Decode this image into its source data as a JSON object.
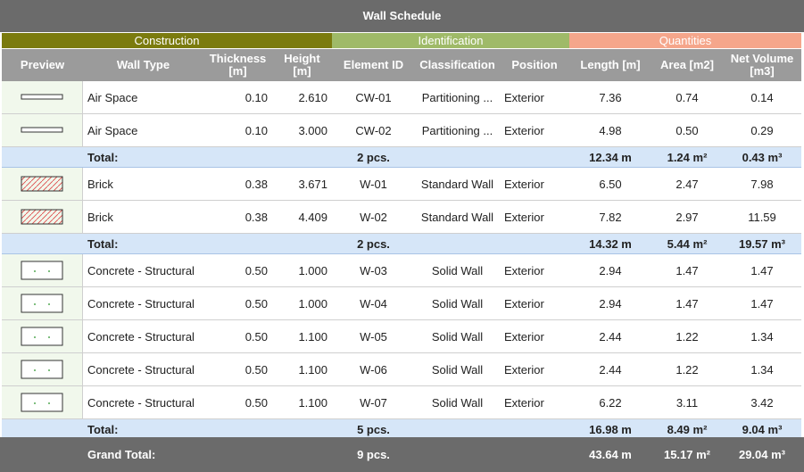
{
  "header": {
    "title": "Wall Schedule"
  },
  "column_groups": [
    "Construction",
    "Identification",
    "Quantities"
  ],
  "columns": [
    "Preview",
    "Wall Type",
    "Thickness [m]",
    "Height [m]",
    "Element ID",
    "Classification",
    "Position",
    "Length [m]",
    "Area [m2]",
    "Net Volume [m3]"
  ],
  "groups": [
    {
      "rows": [
        [
          "Air Space",
          "0.10",
          "2.610",
          "CW-01",
          "Partitioning ...",
          "Exterior",
          "7.36",
          "0.74",
          "0.14"
        ],
        [
          "Air Space",
          "0.10",
          "3.000",
          "CW-02",
          "Partitioning ...",
          "Exterior",
          "4.98",
          "0.50",
          "0.29"
        ]
      ],
      "total": {
        "label": "Total:",
        "count": "2 pcs.",
        "length": "12.34 m",
        "area": "1.24 m²",
        "net_volume": "0.43 m³"
      }
    },
    {
      "rows": [
        [
          "Brick",
          "0.38",
          "3.671",
          "W-01",
          "Standard Wall",
          "Exterior",
          "6.50",
          "2.47",
          "7.98"
        ],
        [
          "Brick",
          "0.38",
          "4.409",
          "W-02",
          "Standard Wall",
          "Exterior",
          "7.82",
          "2.97",
          "11.59"
        ]
      ],
      "total": {
        "label": "Total:",
        "count": "2 pcs.",
        "length": "14.32 m",
        "area": "5.44 m²",
        "net_volume": "19.57 m³"
      }
    },
    {
      "rows": [
        [
          "Concrete - Structural",
          "0.50",
          "1.000",
          "W-03",
          "Solid Wall",
          "Exterior",
          "2.94",
          "1.47",
          "1.47"
        ],
        [
          "Concrete - Structural",
          "0.50",
          "1.000",
          "W-04",
          "Solid Wall",
          "Exterior",
          "2.94",
          "1.47",
          "1.47"
        ],
        [
          "Concrete - Structural",
          "0.50",
          "1.100",
          "W-05",
          "Solid Wall",
          "Exterior",
          "2.44",
          "1.22",
          "1.34"
        ],
        [
          "Concrete - Structural",
          "0.50",
          "1.100",
          "W-06",
          "Solid Wall",
          "Exterior",
          "2.44",
          "1.22",
          "1.34"
        ],
        [
          "Concrete - Structural",
          "0.50",
          "1.100",
          "W-07",
          "Solid Wall",
          "Exterior",
          "6.22",
          "3.11",
          "3.42"
        ]
      ],
      "total": {
        "label": "Total:",
        "count": "5 pcs.",
        "length": "16.98 m",
        "area": "8.49 m²",
        "net_volume": "9.04 m³"
      }
    }
  ],
  "grand_total": {
    "label": "Grand Total:",
    "count": "9 pcs.",
    "length": "43.64 m",
    "area": "15.17 m²",
    "net_volume": "29.04 m³"
  }
}
